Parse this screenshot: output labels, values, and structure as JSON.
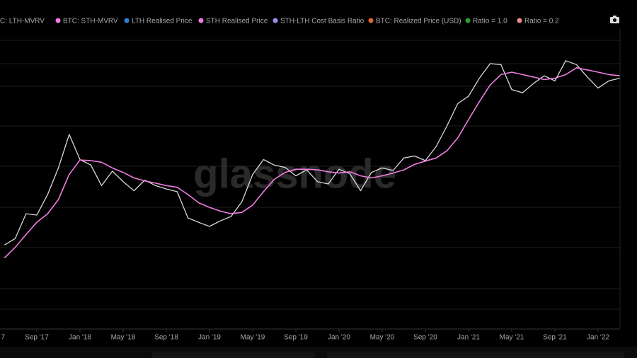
{
  "chart_data": {
    "type": "line",
    "watermark": "glassnode",
    "legend": [
      {
        "name": "C: LTH-MVRV"
      },
      {
        "name": "BTC: STH-MVRV",
        "color": "#f07ce0"
      },
      {
        "name": "LTH Realised Price",
        "color": "#2f7fd0"
      },
      {
        "name": "STH Realised Price",
        "color": "#f07ce0"
      },
      {
        "name": "STH-LTH Cost Basis Ratio",
        "color": "#9f8cf0"
      },
      {
        "name": "BTC: Realized Price (USD)",
        "color": "#e0662c"
      },
      {
        "name": "Ratio = 1.0",
        "color": "#2ca02c"
      },
      {
        "name": "Ratio = 0.2",
        "color": "#f08a8a"
      }
    ],
    "x": [
      "2017-06",
      "2017-07",
      "2017-08",
      "2017-09",
      "2017-10",
      "2017-11",
      "2017-12",
      "2018-01",
      "2018-02",
      "2018-03",
      "2018-04",
      "2018-05",
      "2018-06",
      "2018-07",
      "2018-08",
      "2018-09",
      "2018-10",
      "2018-11",
      "2018-12",
      "2019-01",
      "2019-02",
      "2019-03",
      "2019-04",
      "2019-05",
      "2019-06",
      "2019-07",
      "2019-08",
      "2019-09",
      "2019-10",
      "2019-11",
      "2019-12",
      "2020-01",
      "2020-02",
      "2020-03",
      "2020-04",
      "2020-05",
      "2020-06",
      "2020-07",
      "2020-08",
      "2020-09",
      "2020-10",
      "2020-11",
      "2020-12",
      "2021-01",
      "2021-02",
      "2021-03",
      "2021-04",
      "2021-05",
      "2021-06",
      "2021-07",
      "2021-08",
      "2021-09",
      "2021-10",
      "2021-11",
      "2021-12",
      "2022-01",
      "2022-02",
      "2022-03"
    ],
    "series": [
      {
        "color": "#d9d9d9",
        "values": [
          2500,
          2800,
          4300,
          4200,
          6000,
          9500,
          17000,
          11000,
          10000,
          7000,
          9000,
          7500,
          6400,
          7700,
          7000,
          6600,
          6300,
          4000,
          3700,
          3450,
          3800,
          4100,
          5300,
          8500,
          11000,
          10000,
          9600,
          8300,
          9200,
          7500,
          7200,
          9300,
          8600,
          6400,
          8800,
          9500,
          9100,
          11300,
          11700,
          10800,
          13800,
          19700,
          29000,
          33000,
          45000,
          58000,
          57000,
          37000,
          35000,
          41000,
          47000,
          43000,
          61000,
          57000,
          46000,
          38000,
          43000,
          45000
        ]
      },
      {
        "color": "#f07ce0",
        "values": [
          2000,
          2400,
          3000,
          3700,
          4300,
          5500,
          8500,
          10900,
          10800,
          10500,
          9500,
          8800,
          8000,
          7600,
          7300,
          7000,
          6800,
          6000,
          5200,
          4800,
          4500,
          4300,
          4400,
          5000,
          6300,
          7800,
          8800,
          9300,
          9300,
          9200,
          8900,
          8700,
          8900,
          8300,
          8000,
          8300,
          8700,
          9200,
          10100,
          10700,
          11300,
          12800,
          16000,
          22000,
          30000,
          40000,
          48000,
          50000,
          48000,
          46000,
          44000,
          45000,
          48000,
          54000,
          52000,
          50000,
          48000,
          47000
        ]
      }
    ],
    "log_scale": true,
    "ylim": [
      583,
      107000
    ],
    "grid": true,
    "xticks": [
      {
        "value": "2017-05",
        "label": "7"
      },
      {
        "value": "2017-09",
        "label": "Sep '17"
      },
      {
        "value": "2018-01",
        "label": "Jan '18"
      },
      {
        "value": "2018-05",
        "label": "May '18"
      },
      {
        "value": "2018-09",
        "label": "Sep '18"
      },
      {
        "value": "2019-01",
        "label": "Jan '19"
      },
      {
        "value": "2019-05",
        "label": "May '19"
      },
      {
        "value": "2019-09",
        "label": "Sep '19"
      },
      {
        "value": "2020-01",
        "label": "Jan '20"
      },
      {
        "value": "2020-05",
        "label": "May '20"
      },
      {
        "value": "2020-09",
        "label": "Sep '20"
      },
      {
        "value": "2021-01",
        "label": "Jan '21"
      },
      {
        "value": "2021-05",
        "label": "May '21"
      },
      {
        "value": "2021-09",
        "label": "Sep '21"
      },
      {
        "value": "2022-01",
        "label": "Jan '22"
      }
    ]
  }
}
